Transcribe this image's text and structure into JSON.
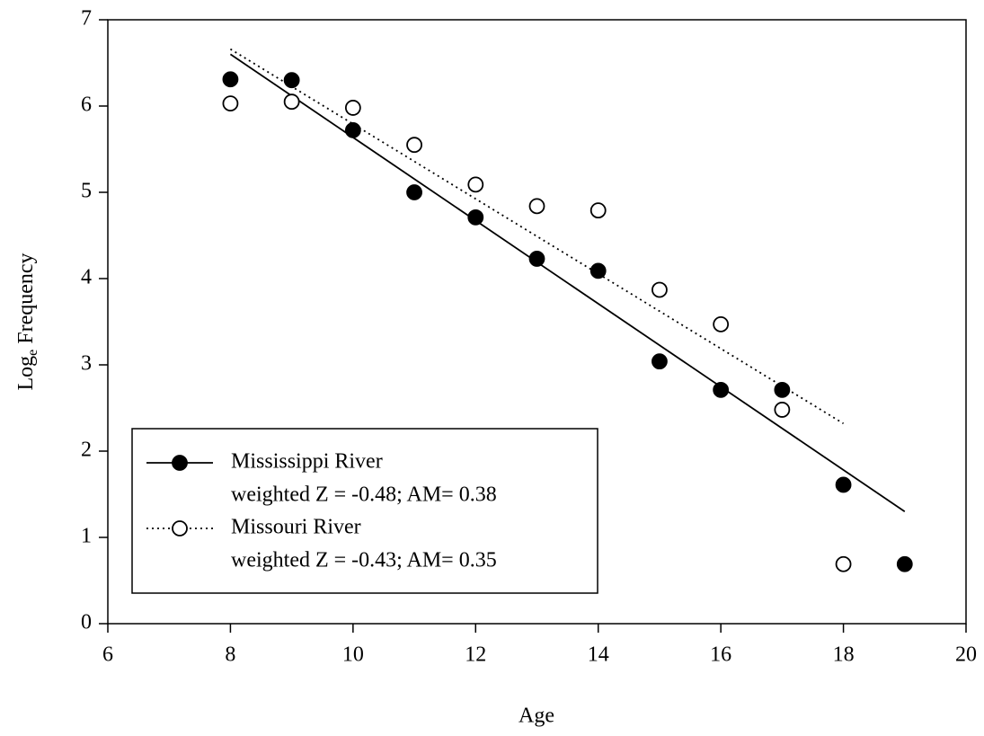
{
  "chart_data": {
    "type": "scatter",
    "x_label": "Age",
    "y_label": [
      "Log",
      "e",
      " Frequency"
    ],
    "xlim": [
      6,
      20
    ],
    "xticks": [
      6,
      8,
      10,
      12,
      14,
      16,
      18,
      20
    ],
    "ylim": [
      0,
      7
    ],
    "yticks": [
      0,
      1,
      2,
      3,
      4,
      5,
      6,
      7
    ],
    "grid": false,
    "legend": "lower left",
    "series": [
      {
        "name": "Mississippi River",
        "stats": "weighted Z = -0.48; AM= 0.38",
        "color": "#000000",
        "marker": "filled",
        "line_style": "solid",
        "x": [
          8,
          9,
          10,
          11,
          12,
          13,
          14,
          15,
          16,
          17,
          18,
          19
        ],
        "values": [
          6.31,
          6.3,
          5.72,
          5.0,
          4.71,
          4.23,
          4.09,
          3.04,
          2.71,
          2.71,
          1.61,
          0.69
        ],
        "fit": {
          "x": [
            8,
            19
          ],
          "values": [
            6.6,
            1.3
          ]
        }
      },
      {
        "name": "Missouri River",
        "stats": "weighted Z = -0.43; AM= 0.35",
        "color": "#000000",
        "marker": "open",
        "line_style": "dotted",
        "x": [
          8,
          9,
          10,
          11,
          12,
          13,
          14,
          15,
          16,
          17,
          18
        ],
        "values": [
          6.03,
          6.05,
          5.98,
          5.55,
          5.09,
          4.84,
          4.79,
          3.87,
          3.47,
          2.48,
          0.69
        ],
        "fit": {
          "x": [
            8,
            18
          ],
          "values": [
            6.66,
            2.32
          ]
        }
      }
    ]
  }
}
